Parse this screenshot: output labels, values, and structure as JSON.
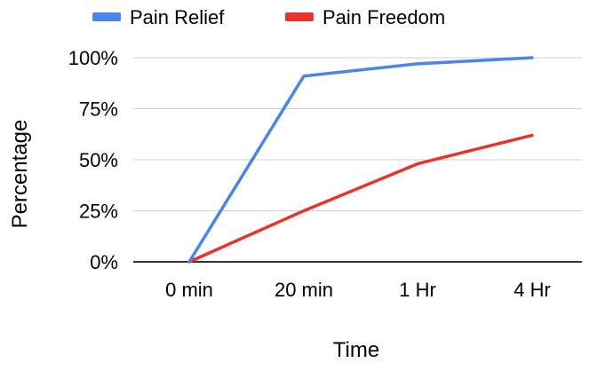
{
  "chart_data": {
    "type": "line",
    "title": "",
    "xlabel": "Time",
    "ylabel": "Percentage",
    "categories": [
      "0 min",
      "20 min",
      "1 Hr",
      "4 Hr"
    ],
    "ylim": [
      0,
      100
    ],
    "yticks": [
      "0%",
      "25%",
      "50%",
      "75%",
      "100%"
    ],
    "ytick_values": [
      0,
      25,
      50,
      75,
      100
    ],
    "grid": true,
    "legend_position": "top-left",
    "series": [
      {
        "name": "Pain Relief",
        "color": "#4A86E8",
        "values": [
          0,
          91,
          97,
          100
        ]
      },
      {
        "name": "Pain Freedom",
        "color": "#E8342A",
        "values": [
          0,
          25,
          48,
          62
        ]
      }
    ]
  }
}
